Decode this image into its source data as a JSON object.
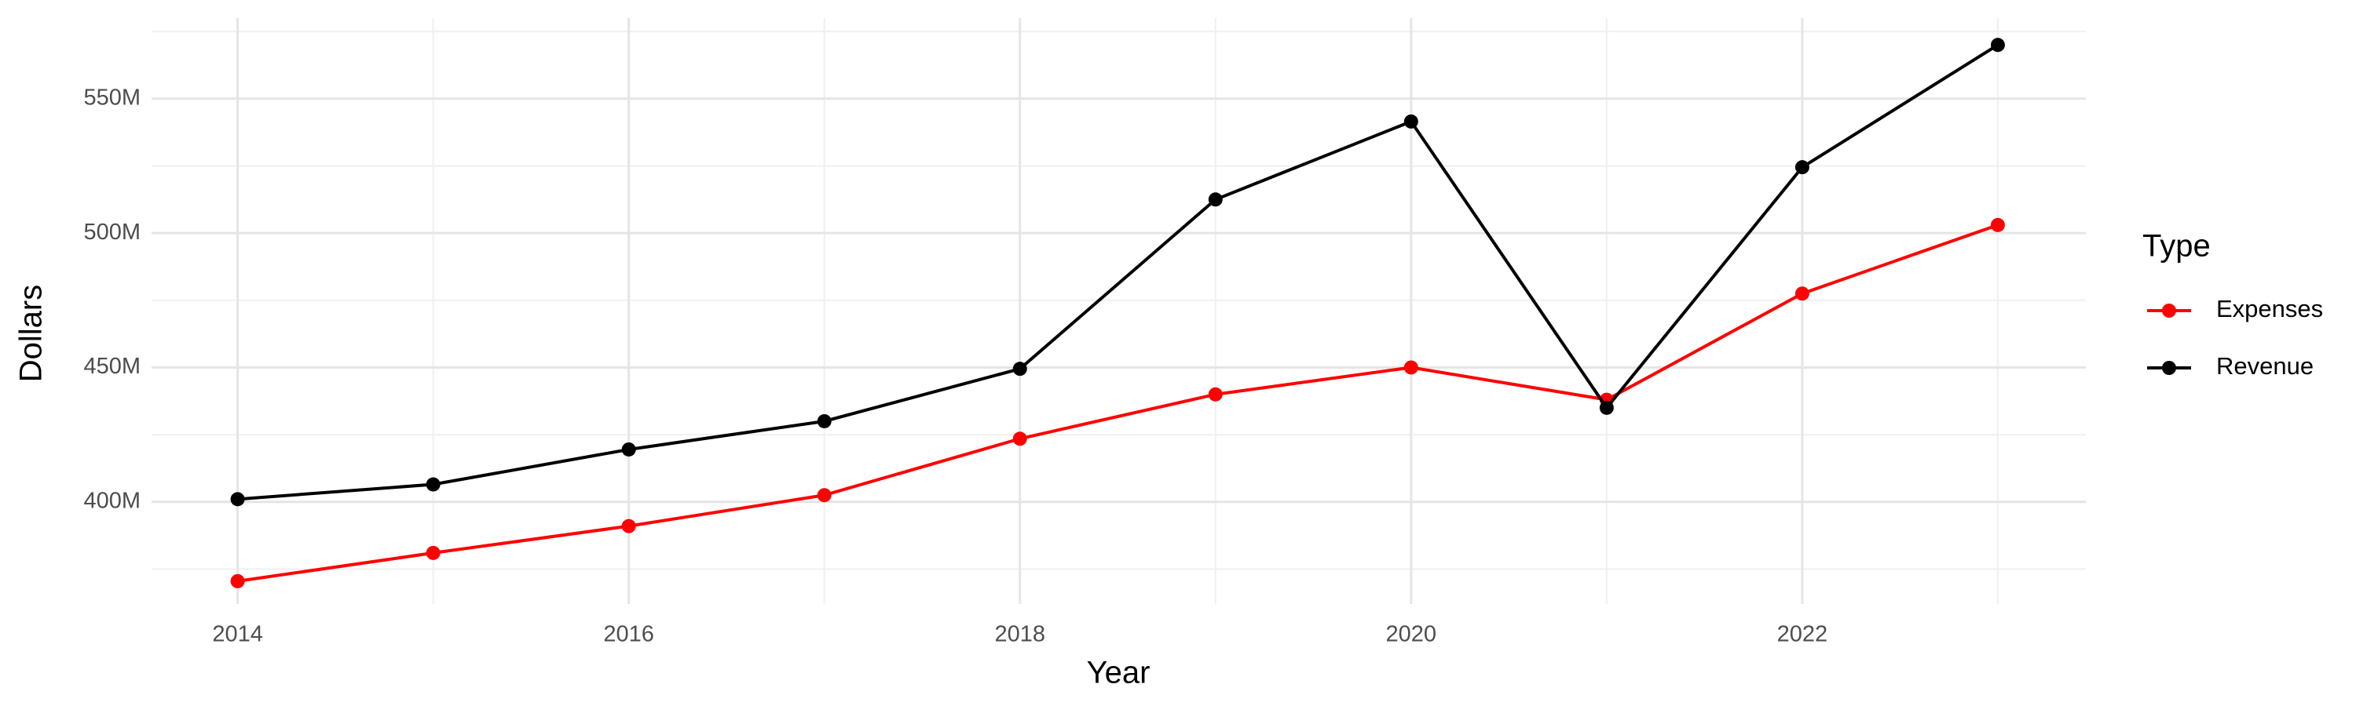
{
  "chart_data": {
    "type": "line",
    "x_label": "Year",
    "y_label": "Dollars",
    "x": [
      2014,
      2015,
      2016,
      2017,
      2018,
      2019,
      2020,
      2021,
      2022,
      2023
    ],
    "series": [
      {
        "name": "Expenses",
        "color": "#ff0000",
        "values": [
          370500000,
          381000000,
          391000000,
          402500000,
          423500000,
          440000000,
          450000000,
          438000000,
          477500000,
          503000000
        ]
      },
      {
        "name": "Revenue",
        "color": "#000000",
        "values": [
          401000000,
          406500000,
          419500000,
          430000000,
          449500000,
          512500000,
          541500000,
          435000000,
          524500000,
          570000000
        ]
      }
    ],
    "xlim": [
      2013.56,
      2023.45
    ],
    "xticks": [
      2014,
      2016,
      2018,
      2020,
      2022
    ],
    "ylim": [
      362000000,
      580000000
    ],
    "yticks": [
      {
        "value": 400000000,
        "label": "400M"
      },
      {
        "value": 450000000,
        "label": "450M"
      },
      {
        "value": 500000000,
        "label": "500M"
      },
      {
        "value": 550000000,
        "label": "550M"
      }
    ],
    "grid": true,
    "legend_title": "Type",
    "legend_position": "right"
  }
}
